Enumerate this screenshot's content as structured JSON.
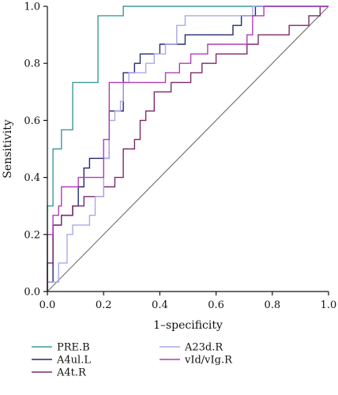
{
  "chart_data": {
    "type": "line",
    "xlabel": "1–specificity",
    "ylabel": "Sensitivity",
    "xlim": [
      0,
      1
    ],
    "ylim": [
      0,
      1
    ],
    "xticks": [
      "0.0",
      "0.2",
      "0.4",
      "0.6",
      "0.8",
      "1.0"
    ],
    "yticks": [
      "0.0",
      "0.2",
      "0.4",
      "0.6",
      "0.8",
      "1.0"
    ],
    "grid": false,
    "legend_position": "bottom",
    "reference_line": {
      "from": [
        0,
        0
      ],
      "to": [
        1,
        1
      ],
      "color": "#777777"
    },
    "series": [
      {
        "name": "PRE.B",
        "color": "#3d9a9a",
        "points": [
          [
            0,
            0
          ],
          [
            0,
            0.3
          ],
          [
            0.02,
            0.3
          ],
          [
            0.02,
            0.5
          ],
          [
            0.05,
            0.5
          ],
          [
            0.05,
            0.567
          ],
          [
            0.09,
            0.567
          ],
          [
            0.09,
            0.733
          ],
          [
            0.18,
            0.733
          ],
          [
            0.18,
            0.967
          ],
          [
            0.27,
            0.967
          ],
          [
            0.27,
            1
          ],
          [
            1,
            1
          ]
        ]
      },
      {
        "name": "A4ul.L",
        "color": "#232a6b",
        "points": [
          [
            0,
            0
          ],
          [
            0,
            0.033
          ],
          [
            0.02,
            0.033
          ],
          [
            0.02,
            0.233
          ],
          [
            0.05,
            0.233
          ],
          [
            0.05,
            0.267
          ],
          [
            0.09,
            0.267
          ],
          [
            0.09,
            0.3
          ],
          [
            0.11,
            0.3
          ],
          [
            0.11,
            0.367
          ],
          [
            0.13,
            0.367
          ],
          [
            0.13,
            0.433
          ],
          [
            0.15,
            0.433
          ],
          [
            0.15,
            0.467
          ],
          [
            0.22,
            0.467
          ],
          [
            0.22,
            0.633
          ],
          [
            0.27,
            0.633
          ],
          [
            0.27,
            0.767
          ],
          [
            0.31,
            0.767
          ],
          [
            0.31,
            0.8
          ],
          [
            0.33,
            0.8
          ],
          [
            0.33,
            0.833
          ],
          [
            0.4,
            0.833
          ],
          [
            0.4,
            0.867
          ],
          [
            0.49,
            0.867
          ],
          [
            0.49,
            0.9
          ],
          [
            0.66,
            0.9
          ],
          [
            0.66,
            0.933
          ],
          [
            0.69,
            0.933
          ],
          [
            0.69,
            0.967
          ],
          [
            0.74,
            0.967
          ],
          [
            0.74,
            1
          ],
          [
            1,
            1
          ]
        ]
      },
      {
        "name": "A4t.R",
        "color": "#7a2a6a",
        "points": [
          [
            0,
            0
          ],
          [
            0,
            0.1
          ],
          [
            0.02,
            0.1
          ],
          [
            0.02,
            0.233
          ],
          [
            0.05,
            0.233
          ],
          [
            0.05,
            0.267
          ],
          [
            0.09,
            0.267
          ],
          [
            0.09,
            0.3
          ],
          [
            0.13,
            0.3
          ],
          [
            0.13,
            0.333
          ],
          [
            0.2,
            0.333
          ],
          [
            0.2,
            0.367
          ],
          [
            0.24,
            0.367
          ],
          [
            0.24,
            0.4
          ],
          [
            0.27,
            0.4
          ],
          [
            0.27,
            0.5
          ],
          [
            0.31,
            0.5
          ],
          [
            0.31,
            0.533
          ],
          [
            0.33,
            0.533
          ],
          [
            0.33,
            0.6
          ],
          [
            0.35,
            0.6
          ],
          [
            0.35,
            0.633
          ],
          [
            0.38,
            0.633
          ],
          [
            0.38,
            0.7
          ],
          [
            0.44,
            0.7
          ],
          [
            0.44,
            0.733
          ],
          [
            0.51,
            0.733
          ],
          [
            0.51,
            0.767
          ],
          [
            0.55,
            0.767
          ],
          [
            0.55,
            0.8
          ],
          [
            0.6,
            0.8
          ],
          [
            0.6,
            0.833
          ],
          [
            0.71,
            0.833
          ],
          [
            0.71,
            0.867
          ],
          [
            0.75,
            0.867
          ],
          [
            0.75,
            0.9
          ],
          [
            0.86,
            0.9
          ],
          [
            0.86,
            0.933
          ],
          [
            0.93,
            0.933
          ],
          [
            0.93,
            0.967
          ],
          [
            0.97,
            0.967
          ],
          [
            0.97,
            1
          ],
          [
            1,
            1
          ]
        ]
      },
      {
        "name": "A23d.R",
        "color": "#a9a9e6",
        "points": [
          [
            0,
            0
          ],
          [
            0,
            0.033
          ],
          [
            0.04,
            0.033
          ],
          [
            0.04,
            0.1
          ],
          [
            0.07,
            0.1
          ],
          [
            0.07,
            0.2
          ],
          [
            0.09,
            0.2
          ],
          [
            0.09,
            0.233
          ],
          [
            0.15,
            0.233
          ],
          [
            0.15,
            0.267
          ],
          [
            0.17,
            0.267
          ],
          [
            0.17,
            0.333
          ],
          [
            0.2,
            0.333
          ],
          [
            0.2,
            0.467
          ],
          [
            0.22,
            0.467
          ],
          [
            0.22,
            0.6
          ],
          [
            0.24,
            0.6
          ],
          [
            0.24,
            0.633
          ],
          [
            0.26,
            0.633
          ],
          [
            0.26,
            0.667
          ],
          [
            0.27,
            0.667
          ],
          [
            0.27,
            0.733
          ],
          [
            0.29,
            0.733
          ],
          [
            0.29,
            0.767
          ],
          [
            0.35,
            0.767
          ],
          [
            0.35,
            0.8
          ],
          [
            0.38,
            0.8
          ],
          [
            0.38,
            0.833
          ],
          [
            0.42,
            0.833
          ],
          [
            0.42,
            0.867
          ],
          [
            0.46,
            0.867
          ],
          [
            0.46,
            0.933
          ],
          [
            0.49,
            0.933
          ],
          [
            0.49,
            0.967
          ],
          [
            0.73,
            0.967
          ],
          [
            0.73,
            1
          ],
          [
            1,
            1
          ]
        ]
      },
      {
        "name": "vId/vIg.R",
        "color": "#b23cb5",
        "points": [
          [
            0,
            0
          ],
          [
            0,
            0.2
          ],
          [
            0.02,
            0.2
          ],
          [
            0.02,
            0.267
          ],
          [
            0.04,
            0.267
          ],
          [
            0.04,
            0.3
          ],
          [
            0.05,
            0.3
          ],
          [
            0.05,
            0.367
          ],
          [
            0.11,
            0.367
          ],
          [
            0.11,
            0.4
          ],
          [
            0.2,
            0.4
          ],
          [
            0.2,
            0.533
          ],
          [
            0.22,
            0.533
          ],
          [
            0.22,
            0.733
          ],
          [
            0.42,
            0.733
          ],
          [
            0.42,
            0.767
          ],
          [
            0.47,
            0.767
          ],
          [
            0.47,
            0.8
          ],
          [
            0.51,
            0.8
          ],
          [
            0.51,
            0.833
          ],
          [
            0.57,
            0.833
          ],
          [
            0.57,
            0.867
          ],
          [
            0.71,
            0.867
          ],
          [
            0.71,
            0.9
          ],
          [
            0.73,
            0.9
          ],
          [
            0.73,
            0.967
          ],
          [
            0.77,
            0.967
          ],
          [
            0.77,
            1
          ],
          [
            1,
            1
          ]
        ]
      }
    ]
  }
}
